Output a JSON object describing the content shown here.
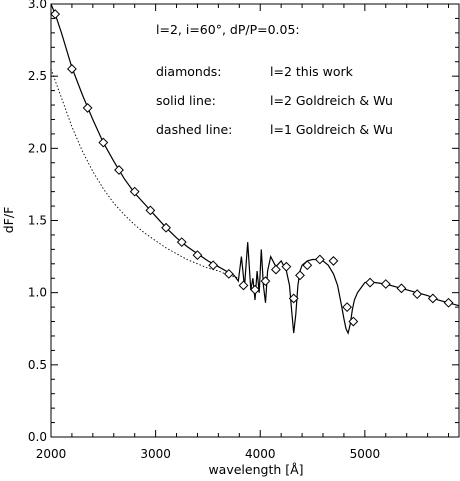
{
  "chart_data": {
    "type": "line",
    "xlabel": "wavelength [Å]",
    "ylabel": "dF/F",
    "xlim": [
      2000,
      5900
    ],
    "ylim": [
      0.0,
      3.0
    ],
    "xticks": [
      2000,
      3000,
      4000,
      5000
    ],
    "xtick_labels": [
      "2000",
      "3000",
      "4000",
      "5000"
    ],
    "yticks": [
      0.0,
      0.5,
      1.0,
      1.5,
      2.0,
      2.5,
      3.0
    ],
    "ytick_labels": [
      "0.0",
      "0.5",
      "1.0",
      "1.5",
      "2.0",
      "2.5",
      "3.0"
    ],
    "grid": false,
    "annotations": [
      {
        "text": "l=2, i=60°, dP/P=0.05:"
      },
      {
        "text": "diamonds:"
      },
      {
        "text": "l=2 this work"
      },
      {
        "text": "solid line:"
      },
      {
        "text": "l=2 Goldreich & Wu"
      },
      {
        "text": "dashed line:"
      },
      {
        "text": "l=1 Goldreich & Wu"
      }
    ],
    "series": [
      {
        "style": "diamonds",
        "x": [
          2040,
          2200,
          2350,
          2500,
          2650,
          2800,
          2950,
          3100,
          3250,
          3400,
          3550,
          3700,
          3840,
          3950,
          4050,
          4150,
          4250,
          4320,
          4380,
          4450,
          4570,
          4700,
          4830,
          4890,
          5050,
          5200,
          5350,
          5500,
          5650,
          5800
        ],
        "y": [
          2.93,
          2.55,
          2.28,
          2.04,
          1.85,
          1.7,
          1.57,
          1.45,
          1.35,
          1.26,
          1.19,
          1.13,
          1.05,
          1.02,
          1.08,
          1.16,
          1.18,
          0.96,
          1.12,
          1.19,
          1.23,
          1.22,
          0.9,
          0.8,
          1.07,
          1.06,
          1.03,
          0.99,
          0.96,
          0.93
        ]
      },
      {
        "style": "solid",
        "x": [
          2000,
          2040,
          2100,
          2200,
          2300,
          2400,
          2500,
          2600,
          2700,
          2800,
          2900,
          3000,
          3100,
          3200,
          3300,
          3400,
          3500,
          3600,
          3700,
          3750,
          3790,
          3820,
          3850,
          3880,
          3910,
          3930,
          3950,
          3970,
          3990,
          4010,
          4030,
          4050,
          4070,
          4100,
          4150,
          4200,
          4250,
          4280,
          4300,
          4320,
          4340,
          4360,
          4380,
          4400,
          4450,
          4500,
          4550,
          4600,
          4650,
          4700,
          4740,
          4780,
          4800,
          4820,
          4840,
          4860,
          4880,
          4900,
          4930,
          4970,
          5000,
          5050,
          5100,
          5200,
          5300,
          5400,
          5500,
          5600,
          5700,
          5800,
          5900
        ],
        "y": [
          3.0,
          2.93,
          2.8,
          2.56,
          2.37,
          2.2,
          2.04,
          1.91,
          1.79,
          1.69,
          1.61,
          1.53,
          1.45,
          1.38,
          1.32,
          1.27,
          1.22,
          1.18,
          1.14,
          1.12,
          1.08,
          1.25,
          1.04,
          1.35,
          1.02,
          1.1,
          0.95,
          1.15,
          1.0,
          1.3,
          1.05,
          0.93,
          1.15,
          1.25,
          1.18,
          1.22,
          1.15,
          1.05,
          0.88,
          0.72,
          0.85,
          1.05,
          1.15,
          1.19,
          1.22,
          1.23,
          1.23,
          1.22,
          1.19,
          1.13,
          1.05,
          0.9,
          0.82,
          0.75,
          0.72,
          0.78,
          0.88,
          0.95,
          1.0,
          1.04,
          1.07,
          1.08,
          1.07,
          1.06,
          1.04,
          1.02,
          1.0,
          0.98,
          0.95,
          0.93,
          0.91
        ]
      },
      {
        "style": "dashed",
        "x": [
          2000,
          2050,
          2100,
          2200,
          2300,
          2400,
          2500,
          2600,
          2700,
          2800,
          2900,
          3000,
          3100,
          3200,
          3300,
          3400,
          3500,
          3600,
          3700,
          3800
        ],
        "y": [
          2.55,
          2.45,
          2.35,
          2.15,
          1.98,
          1.84,
          1.72,
          1.62,
          1.54,
          1.47,
          1.41,
          1.36,
          1.31,
          1.27,
          1.23,
          1.2,
          1.17,
          1.15,
          1.12,
          1.1
        ]
      }
    ]
  }
}
